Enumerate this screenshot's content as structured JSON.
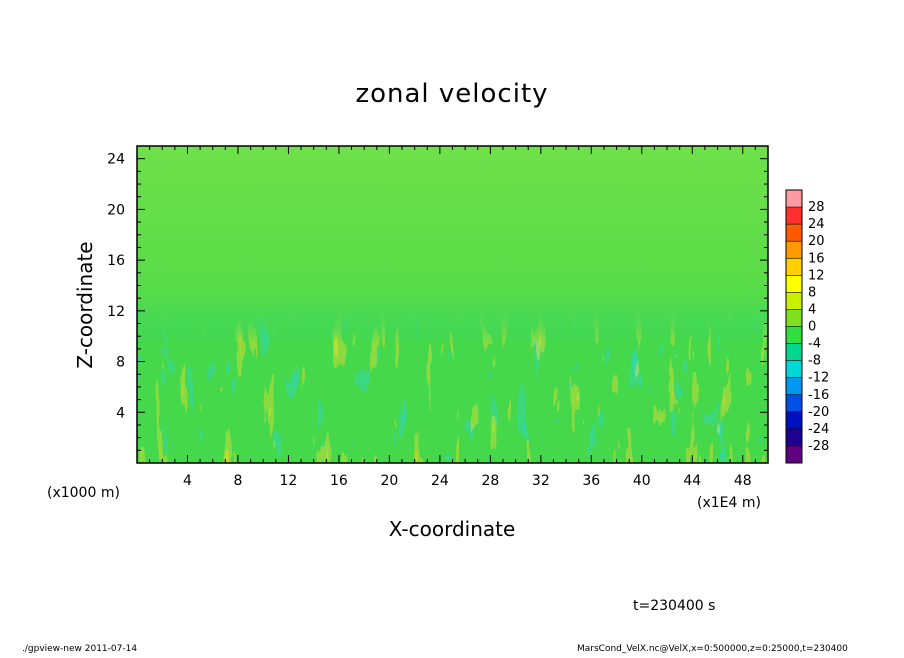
{
  "chart_data": {
    "type": "heatmap",
    "title": "zonal velocity",
    "xlabel": "X-coordinate",
    "ylabel": "Z-coordinate",
    "x_ticks": [
      4,
      8,
      12,
      16,
      20,
      24,
      28,
      32,
      36,
      40,
      44,
      48
    ],
    "y_ticks": [
      4,
      8,
      12,
      16,
      20,
      24
    ],
    "xlim": [
      0,
      50
    ],
    "ylim": [
      0,
      25
    ],
    "x_units": "(x1E4 m)",
    "y_units": "(x1000 m)",
    "colorbar": {
      "levels": [
        28,
        24,
        20,
        16,
        12,
        8,
        4,
        0,
        -4,
        -8,
        -12,
        -16,
        -20,
        -24,
        -28
      ],
      "colors": [
        "#ff9aa2",
        "#ff3030",
        "#ff5a00",
        "#ff9a00",
        "#ffd000",
        "#ffff00",
        "#c8f000",
        "#80e020",
        "#30e040",
        "#00d890",
        "#00d8d8",
        "#0098f0",
        "#0050e8",
        "#0010c0",
        "#200090",
        "#600080"
      ]
    },
    "time_label": "t=230400 s"
  },
  "footer": {
    "left": "./gpview-new   2011-07-14",
    "right": "MarsCond_VelX.nc@VelX,x=0:500000,z=0:25000,t=230400"
  }
}
